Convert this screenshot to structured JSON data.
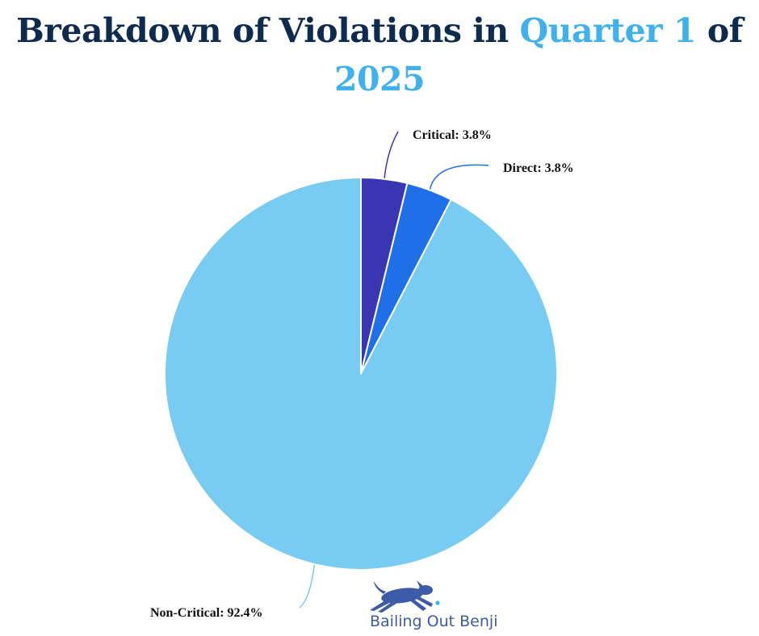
{
  "title": {
    "part1": "Breakdown of Violations in ",
    "highlight1": "Quarter 1",
    "part2": " of",
    "highlight2": "2025"
  },
  "chart_data": {
    "type": "pie",
    "title": "Breakdown of Violations in Quarter 1 of 2025",
    "slices": [
      {
        "label": "Critical",
        "value": 3.8,
        "display": "Critical: 3.8%",
        "color": "#3a36b2"
      },
      {
        "label": "Direct",
        "value": 3.8,
        "display": "Direct: 3.8%",
        "color": "#1f70e8"
      },
      {
        "label": "Non-Critical",
        "value": 92.4,
        "display": "Non-Critical: 92.4%",
        "color": "#78cbf1"
      }
    ],
    "start": "12 o'clock",
    "direction": "clockwise",
    "legend": "none"
  },
  "brand": {
    "name": "Bailing Out Benji",
    "logo_icon": "running-dog-icon",
    "color": "#3d5ba8",
    "dot_color": "#3fb1ef"
  }
}
